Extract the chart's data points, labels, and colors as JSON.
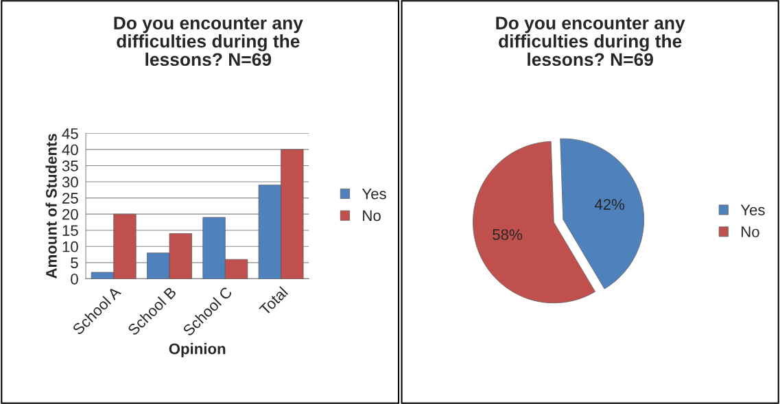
{
  "chart_data": [
    {
      "type": "bar",
      "title": "Do you encounter any\ndifficulties during the\nlessons? N=69",
      "xlabel": "Opinion",
      "ylabel": "Amount of Students",
      "categories": [
        "School A",
        "School B",
        "School C",
        "Total"
      ],
      "series": [
        {
          "name": "Yes",
          "color": "#4f81bd",
          "values": [
            2,
            8,
            19,
            29
          ]
        },
        {
          "name": "No",
          "color": "#c0504d",
          "values": [
            20,
            14,
            6,
            40
          ]
        }
      ],
      "ylim": [
        0,
        45
      ],
      "yticks": [
        0,
        5,
        10,
        15,
        20,
        25,
        30,
        35,
        40,
        45
      ],
      "grid": "y",
      "legend": "right"
    },
    {
      "type": "pie",
      "title": "Do you encounter any\ndifficulties during the\nlessons? N=69",
      "categories": [
        "Yes",
        "No"
      ],
      "values": [
        42,
        58
      ],
      "colors": [
        "#4f81bd",
        "#c0504d"
      ],
      "value_labels": [
        "42%",
        "58%"
      ],
      "legend": "right"
    }
  ]
}
